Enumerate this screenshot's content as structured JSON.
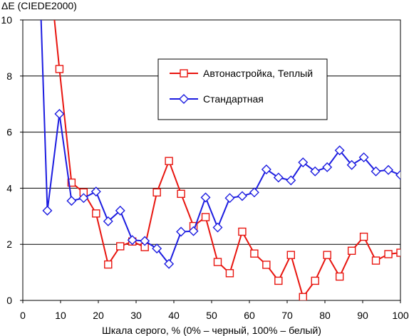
{
  "chart_data": {
    "type": "line",
    "title": "",
    "xlabel": "Шкала серого, % (0% – черный, 100% – белый)",
    "ylabel": "ΔE (CIEDE2000)",
    "xlim": [
      0,
      100
    ],
    "ylim": [
      0,
      10
    ],
    "x_ticks": [
      0,
      10,
      20,
      30,
      40,
      50,
      60,
      70,
      80,
      90,
      100
    ],
    "y_ticks": [
      0,
      2,
      4,
      6,
      8,
      10
    ],
    "grid": "horizontal",
    "legend_position": "upper-middle (boxed)",
    "series": [
      {
        "name": "Автонастройка, Теплый",
        "color": "#e8150f",
        "marker": "square",
        "points": [
          [
            8.0,
            10.5
          ],
          [
            9.7,
            8.25
          ],
          [
            12.9,
            4.2
          ],
          [
            16.1,
            3.85
          ],
          [
            19.4,
            3.1
          ],
          [
            22.6,
            1.28
          ],
          [
            25.8,
            1.93
          ],
          [
            29.0,
            2.1
          ],
          [
            32.3,
            1.9
          ],
          [
            35.5,
            3.85
          ],
          [
            38.7,
            4.97
          ],
          [
            41.9,
            3.8
          ],
          [
            45.2,
            2.65
          ],
          [
            48.4,
            2.97
          ],
          [
            51.6,
            1.37
          ],
          [
            54.8,
            0.97
          ],
          [
            58.1,
            2.45
          ],
          [
            61.3,
            1.67
          ],
          [
            64.5,
            1.27
          ],
          [
            67.7,
            0.7
          ],
          [
            71.0,
            1.62
          ],
          [
            74.2,
            0.12
          ],
          [
            77.4,
            0.7
          ],
          [
            80.6,
            1.62
          ],
          [
            83.9,
            0.85
          ],
          [
            87.1,
            1.77
          ],
          [
            90.3,
            2.27
          ],
          [
            93.5,
            1.42
          ],
          [
            96.8,
            1.65
          ],
          [
            100.0,
            1.7
          ]
        ]
      },
      {
        "name": "Стандартная",
        "color": "#1c1ce0",
        "marker": "diamond",
        "points": [
          [
            4.8,
            10.2
          ],
          [
            6.5,
            3.2
          ],
          [
            9.7,
            6.65
          ],
          [
            12.9,
            3.55
          ],
          [
            16.1,
            3.65
          ],
          [
            19.4,
            3.88
          ],
          [
            22.6,
            2.82
          ],
          [
            25.8,
            3.2
          ],
          [
            29.0,
            2.15
          ],
          [
            32.3,
            2.12
          ],
          [
            35.5,
            1.85
          ],
          [
            38.7,
            1.3
          ],
          [
            41.9,
            2.45
          ],
          [
            45.2,
            2.47
          ],
          [
            48.4,
            3.67
          ],
          [
            51.6,
            2.6
          ],
          [
            54.8,
            3.65
          ],
          [
            58.1,
            3.72
          ],
          [
            61.3,
            3.85
          ],
          [
            64.5,
            4.67
          ],
          [
            67.7,
            4.38
          ],
          [
            71.0,
            4.28
          ],
          [
            74.2,
            4.92
          ],
          [
            77.4,
            4.6
          ],
          [
            80.6,
            4.75
          ],
          [
            83.9,
            5.35
          ],
          [
            87.1,
            4.83
          ],
          [
            90.3,
            5.1
          ],
          [
            93.5,
            4.6
          ],
          [
            96.8,
            4.65
          ],
          [
            100.0,
            4.47
          ]
        ]
      }
    ]
  }
}
